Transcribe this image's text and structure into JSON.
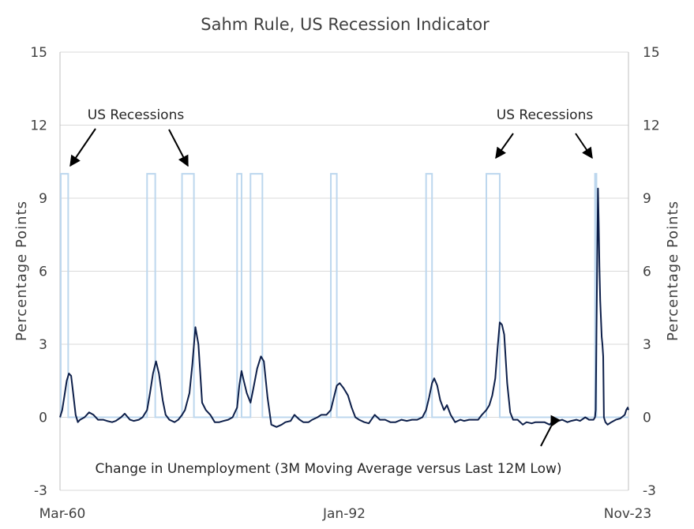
{
  "chart_data": {
    "type": "line",
    "title": "Sahm Rule, US Recession Indicator",
    "ylabel_left": "Percentage  Points",
    "ylabel_right": "Percentage  Points",
    "ylim": [
      -3,
      15
    ],
    "yticks": [
      -3,
      0,
      3,
      6,
      9,
      12,
      15
    ],
    "xlim": [
      "Mar-60",
      "Nov-23"
    ],
    "xtick_labels": [
      "Mar-60",
      "Jan-92",
      "Nov-23"
    ],
    "grid": true,
    "annotations": [
      {
        "text": "US Recessions",
        "near": "upper-left"
      },
      {
        "text": "US Recessions",
        "near": "upper-right"
      },
      {
        "text": "Change in Unemployment (3M Moving Average versus Last 12M Low)",
        "near": "bottom-center"
      }
    ],
    "series": [
      {
        "key": "recessions",
        "color": "#bdd7ee",
        "recession_value": 10,
        "recessions": [
          {
            "start": "Apr-60",
            "end": "Feb-61"
          },
          {
            "start": "Dec-69",
            "end": "Nov-70"
          },
          {
            "start": "Nov-73",
            "end": "Mar-75"
          },
          {
            "start": "Jan-80",
            "end": "Jul-80"
          },
          {
            "start": "Jul-81",
            "end": "Nov-82"
          },
          {
            "start": "Jul-90",
            "end": "Mar-91"
          },
          {
            "start": "Mar-01",
            "end": "Nov-01"
          },
          {
            "start": "Dec-07",
            "end": "Jun-09"
          },
          {
            "start": "Feb-20",
            "end": "Apr-20"
          }
        ]
      },
      {
        "key": "sahm",
        "color": "#0d1f4a",
        "points": [
          [
            "Mar-60",
            0.0
          ],
          [
            "Jun-60",
            0.3
          ],
          [
            "Sep-60",
            0.9
          ],
          [
            "Dec-60",
            1.5
          ],
          [
            "Mar-61",
            1.8
          ],
          [
            "Jun-61",
            1.7
          ],
          [
            "Sep-61",
            0.9
          ],
          [
            "Dec-61",
            0.1
          ],
          [
            "Mar-62",
            -0.2
          ],
          [
            "Jun-62",
            -0.1
          ],
          [
            "Dec-62",
            0.0
          ],
          [
            "Jun-63",
            0.2
          ],
          [
            "Dec-63",
            0.1
          ],
          [
            "Jun-64",
            -0.1
          ],
          [
            "Jan-65",
            -0.1
          ],
          [
            "Jun-65",
            -0.15
          ],
          [
            "Jan-66",
            -0.2
          ],
          [
            "Jun-66",
            -0.15
          ],
          [
            "Jan-67",
            0.0
          ],
          [
            "Jun-67",
            0.15
          ],
          [
            "Jan-68",
            -0.1
          ],
          [
            "Jun-68",
            -0.15
          ],
          [
            "Jan-69",
            -0.1
          ],
          [
            "Jun-69",
            0.0
          ],
          [
            "Dec-69",
            0.3
          ],
          [
            "Apr-70",
            1.0
          ],
          [
            "Aug-70",
            1.8
          ],
          [
            "Dec-70",
            2.3
          ],
          [
            "Apr-71",
            1.8
          ],
          [
            "Sep-71",
            0.7
          ],
          [
            "Jan-72",
            0.1
          ],
          [
            "Jun-72",
            -0.1
          ],
          [
            "Jan-73",
            -0.2
          ],
          [
            "Jun-73",
            -0.1
          ],
          [
            "Nov-73",
            0.1
          ],
          [
            "Mar-74",
            0.3
          ],
          [
            "Sep-74",
            1.0
          ],
          [
            "Jan-75",
            2.2
          ],
          [
            "May-75",
            3.7
          ],
          [
            "Sep-75",
            3.0
          ],
          [
            "Feb-76",
            0.6
          ],
          [
            "Jul-76",
            0.3
          ],
          [
            "Jan-77",
            0.1
          ],
          [
            "Jul-77",
            -0.2
          ],
          [
            "Jan-78",
            -0.2
          ],
          [
            "Jul-78",
            -0.15
          ],
          [
            "Jan-79",
            -0.1
          ],
          [
            "Jul-79",
            0.0
          ],
          [
            "Jan-80",
            0.4
          ],
          [
            "Apr-80",
            1.3
          ],
          [
            "Jul-80",
            1.9
          ],
          [
            "Oct-80",
            1.5
          ],
          [
            "Feb-81",
            1.0
          ],
          [
            "Jul-81",
            0.6
          ],
          [
            "Nov-81",
            1.2
          ],
          [
            "Apr-82",
            2.0
          ],
          [
            "Sep-82",
            2.5
          ],
          [
            "Jan-83",
            2.3
          ],
          [
            "Jun-83",
            0.8
          ],
          [
            "Nov-83",
            -0.3
          ],
          [
            "Jun-84",
            -0.4
          ],
          [
            "Jan-85",
            -0.3
          ],
          [
            "Jun-85",
            -0.2
          ],
          [
            "Jan-86",
            -0.15
          ],
          [
            "Jun-86",
            0.1
          ],
          [
            "Jan-87",
            -0.1
          ],
          [
            "Jun-87",
            -0.2
          ],
          [
            "Jan-88",
            -0.2
          ],
          [
            "Jun-88",
            -0.1
          ],
          [
            "Jan-89",
            0.0
          ],
          [
            "Jun-89",
            0.1
          ],
          [
            "Jan-90",
            0.1
          ],
          [
            "Jul-90",
            0.3
          ],
          [
            "Nov-90",
            0.8
          ],
          [
            "Mar-91",
            1.3
          ],
          [
            "Jul-91",
            1.4
          ],
          [
            "Dec-91",
            1.2
          ],
          [
            "Jun-92",
            0.9
          ],
          [
            "Nov-92",
            0.4
          ],
          [
            "Apr-93",
            0.0
          ],
          [
            "Sep-93",
            -0.1
          ],
          [
            "Apr-94",
            -0.2
          ],
          [
            "Oct-94",
            -0.25
          ],
          [
            "Jun-95",
            0.1
          ],
          [
            "Jan-96",
            -0.1
          ],
          [
            "Aug-96",
            -0.1
          ],
          [
            "Mar-97",
            -0.2
          ],
          [
            "Oct-97",
            -0.2
          ],
          [
            "Jun-98",
            -0.1
          ],
          [
            "Jan-99",
            -0.15
          ],
          [
            "Aug-99",
            -0.1
          ],
          [
            "Mar-00",
            -0.1
          ],
          [
            "Oct-00",
            0.0
          ],
          [
            "Mar-01",
            0.3
          ],
          [
            "Jul-01",
            0.8
          ],
          [
            "Nov-01",
            1.4
          ],
          [
            "Feb-02",
            1.6
          ],
          [
            "Jun-02",
            1.3
          ],
          [
            "Oct-02",
            0.7
          ],
          [
            "Mar-03",
            0.3
          ],
          [
            "Jul-03",
            0.5
          ],
          [
            "Dec-03",
            0.1
          ],
          [
            "Jun-04",
            -0.2
          ],
          [
            "Jan-05",
            -0.1
          ],
          [
            "Jun-05",
            -0.15
          ],
          [
            "Jan-06",
            -0.1
          ],
          [
            "Jun-06",
            -0.1
          ],
          [
            "Jan-07",
            -0.1
          ],
          [
            "Jun-07",
            0.1
          ],
          [
            "Dec-07",
            0.3
          ],
          [
            "Apr-08",
            0.5
          ],
          [
            "Aug-08",
            0.9
          ],
          [
            "Dec-08",
            1.6
          ],
          [
            "Mar-09",
            2.8
          ],
          [
            "Jun-09",
            3.9
          ],
          [
            "Sep-09",
            3.8
          ],
          [
            "Dec-09",
            3.4
          ],
          [
            "Apr-10",
            1.4
          ],
          [
            "Aug-10",
            0.2
          ],
          [
            "Dec-10",
            -0.1
          ],
          [
            "Jun-11",
            -0.1
          ],
          [
            "Jan-12",
            -0.3
          ],
          [
            "Jun-12",
            -0.2
          ],
          [
            "Jan-13",
            -0.25
          ],
          [
            "Jun-13",
            -0.2
          ],
          [
            "Jan-14",
            -0.2
          ],
          [
            "Jun-14",
            -0.2
          ],
          [
            "Jan-15",
            -0.3
          ],
          [
            "Jun-15",
            -0.15
          ],
          [
            "Jan-16",
            -0.15
          ],
          [
            "Jun-16",
            -0.1
          ],
          [
            "Jan-17",
            -0.2
          ],
          [
            "Jun-17",
            -0.15
          ],
          [
            "Jan-18",
            -0.1
          ],
          [
            "Jun-18",
            -0.15
          ],
          [
            "Jan-19",
            0.0
          ],
          [
            "Jun-19",
            -0.1
          ],
          [
            "Dec-19",
            -0.1
          ],
          [
            "Feb-20",
            0.0
          ],
          [
            "Mar-20",
            0.3
          ],
          [
            "Apr-20",
            3.5
          ],
          [
            "May-20",
            6.5
          ],
          [
            "Jun-20",
            9.4
          ],
          [
            "Jul-20",
            8.0
          ],
          [
            "Aug-20",
            6.2
          ],
          [
            "Sep-20",
            4.8
          ],
          [
            "Nov-20",
            3.3
          ],
          [
            "Dec-20",
            3.0
          ],
          [
            "Jan-21",
            2.5
          ],
          [
            "Feb-21",
            0.0
          ],
          [
            "Apr-21",
            -0.2
          ],
          [
            "Jul-21",
            -0.3
          ],
          [
            "Dec-21",
            -0.2
          ],
          [
            "Jun-22",
            -0.1
          ],
          [
            "Dec-22",
            -0.05
          ],
          [
            "Jun-23",
            0.1
          ],
          [
            "Aug-23",
            0.3
          ],
          [
            "Oct-23",
            0.4
          ],
          [
            "Nov-23",
            0.3
          ]
        ]
      }
    ]
  }
}
